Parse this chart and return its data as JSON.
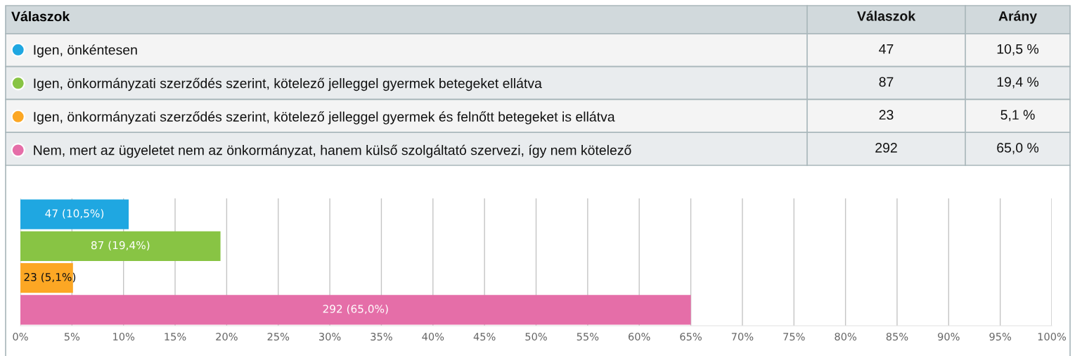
{
  "chart_data": {
    "type": "bar",
    "orientation": "horizontal",
    "categories": [
      null,
      null,
      null,
      null
    ],
    "series": [
      {
        "name": "Igen, önkéntesen",
        "color": "#1fa7e1",
        "values": [
          10.5,
          null,
          null,
          null
        ],
        "value_labels": [
          "47 (10,5%)",
          null,
          null,
          null
        ]
      },
      {
        "name": "Igen, önkormányzati szerződés szerint, kötelező jelleggel gyermek betegeket ellátva",
        "color": "#88c444",
        "values": [
          null,
          19.4,
          null,
          null
        ],
        "value_labels": [
          null,
          "87 (19,4%)",
          null,
          null
        ]
      },
      {
        "name": "Igen, önkormányzati szerződés szerint, kötelező jelleggel gyermek és felnőtt betegeket is ellátva",
        "color": "#fca724",
        "values": [
          null,
          null,
          5.1,
          null
        ],
        "value_labels": [
          null,
          null,
          "23 (5,1%)",
          null
        ]
      },
      {
        "name": "Nem, mert az ügyeletet nem az önkormányzat, hanem külső szolgáltató szervezi, így nem kötelező",
        "color": "#e56ea8",
        "values": [
          null,
          null,
          null,
          65.0
        ],
        "value_labels": [
          null,
          null,
          null,
          "292 (65,0%)"
        ]
      }
    ],
    "xlim": [
      0,
      100
    ],
    "xticks": [
      {
        "value": 0,
        "label": "0%"
      },
      {
        "value": 5,
        "label": "5%"
      },
      {
        "value": 10,
        "label": "10%"
      },
      {
        "value": 15,
        "label": "15%"
      },
      {
        "value": 20,
        "label": "20%"
      },
      {
        "value": 25,
        "label": "25%"
      },
      {
        "value": 30,
        "label": "30%"
      },
      {
        "value": 35,
        "label": "35%"
      },
      {
        "value": 40,
        "label": "40%"
      },
      {
        "value": 45,
        "label": "45%"
      },
      {
        "value": 50,
        "label": "50%"
      },
      {
        "value": 55,
        "label": "55%"
      },
      {
        "value": 60,
        "label": "60%"
      },
      {
        "value": 65,
        "label": "65%"
      },
      {
        "value": 70,
        "label": "70%"
      },
      {
        "value": 75,
        "label": "75%"
      },
      {
        "value": 80,
        "label": "80%"
      },
      {
        "value": 85,
        "label": "85%"
      },
      {
        "value": 90,
        "label": "90%"
      },
      {
        "value": 95,
        "label": "95%"
      },
      {
        "value": 100,
        "label": "100%"
      }
    ],
    "grid": "x",
    "legend": "top",
    "tick_labels": "x",
    "legend_title": "Válaszok",
    "annotations": [
      "Válaszok",
      "Arány",
      "47",
      "10,5 %",
      "87",
      "19,4 %",
      "23",
      "5,1 %",
      "292",
      "65,0 %"
    ]
  }
}
